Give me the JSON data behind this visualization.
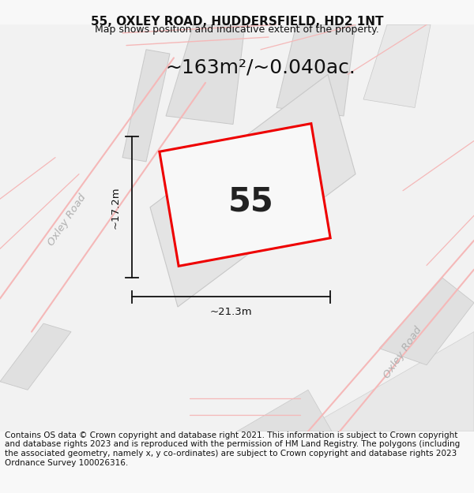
{
  "title": "55, OXLEY ROAD, HUDDERSFIELD, HD2 1NT",
  "subtitle": "Map shows position and indicative extent of the property.",
  "footer": "Contains OS data © Crown copyright and database right 2021. This information is subject to Crown copyright and database rights 2023 and is reproduced with the permission of HM Land Registry. The polygons (including the associated geometry, namely x, y co-ordinates) are subject to Crown copyright and database rights 2023 Ordnance Survey 100026316.",
  "area_label": "~163m²/~0.040ac.",
  "number_label": "55",
  "dim_horiz": "~21.3m",
  "dim_vert": "~17.2m",
  "road_label_left": "Oxley Road",
  "road_label_right": "Oxley Road",
  "bg_color": "#f8f8f8",
  "map_bg": "#f0f0f0",
  "property_fill": "#f5f5f5",
  "property_stroke": "#ff0000",
  "road_line_color": "#f5b8b8",
  "dim_line_color": "#111111",
  "title_fontsize": 11,
  "subtitle_fontsize": 9,
  "footer_fontsize": 7.5,
  "area_fontsize": 18,
  "number_fontsize": 30,
  "road_label_fontsize": 9.5
}
